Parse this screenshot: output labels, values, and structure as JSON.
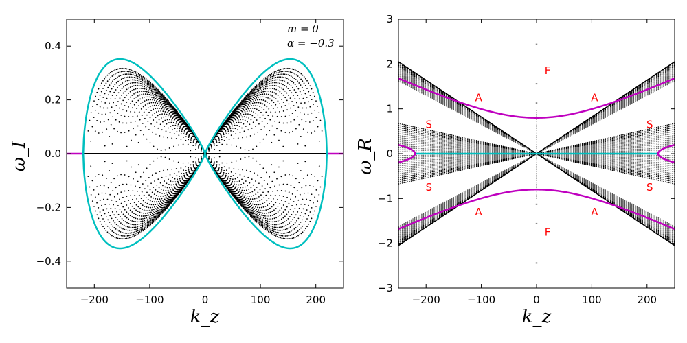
{
  "chart_data": [
    {
      "type": "scatter",
      "panel": "left",
      "xlabel": "k_z",
      "ylabel": "ω_I",
      "xlim": [
        -250,
        250
      ],
      "ylim": [
        -0.5,
        0.5
      ],
      "xticks": [
        -200,
        -100,
        0,
        100,
        200
      ],
      "xtick_labels": [
        "−200",
        "−100",
        "0",
        "100",
        "200"
      ],
      "yticks": [
        -0.4,
        -0.2,
        0.0,
        0.2,
        0.4
      ],
      "ytick_labels": [
        "−0.4",
        "−0.2",
        "0.0",
        "0.2",
        "0.4"
      ],
      "annotations": [
        "m = 0",
        "α = −0.3"
      ],
      "envelope": {
        "color": "#00bfbf",
        "k_zero": 220,
        "k_peak": 130,
        "omega_peak": 0.352,
        "points_positive_k": [
          [
            0,
            0
          ],
          [
            30,
            0.16
          ],
          [
            60,
            0.27
          ],
          [
            100,
            0.34
          ],
          [
            130,
            0.352
          ],
          [
            170,
            0.32
          ],
          [
            200,
            0.22
          ],
          [
            215,
            0.1
          ],
          [
            220,
            0
          ]
        ]
      },
      "zero_line": {
        "color": "#000000",
        "x_range": [
          -220,
          220
        ]
      },
      "stable_line": {
        "color": "#bf00bf",
        "x_ranges": [
          [
            -250,
            -220
          ],
          [
            220,
            250
          ]
        ]
      },
      "dot_family": {
        "color": "#000000",
        "curve_count": 30
      }
    },
    {
      "type": "scatter",
      "panel": "right",
      "xlabel": "k_z",
      "ylabel": "ω_R",
      "xlim": [
        -250,
        250
      ],
      "ylim": [
        -3,
        3
      ],
      "xticks": [
        -200,
        -100,
        0,
        100,
        200
      ],
      "xtick_labels": [
        "−200",
        "−100",
        "0",
        "100",
        "200"
      ],
      "yticks": [
        -3,
        -2,
        -1,
        0,
        1,
        2,
        3
      ],
      "ytick_labels": [
        "−3",
        "−2",
        "−1",
        "0",
        "1",
        "2",
        "3"
      ],
      "alfven_branch": {
        "color": "#bf00bf",
        "formula": "omega = sqrt(0.8^2 + (0.00357 k)^2)",
        "points": [
          [
            0,
            0.8
          ],
          [
            100,
            1.07
          ],
          [
            200,
            1.5
          ],
          [
            250,
            1.71
          ]
        ]
      },
      "fast_dashes": {
        "color": "#888888",
        "omega": [
          2.44,
          1.56,
          1.13
        ]
      },
      "straight_lines": {
        "color": "#000000",
        "slopes": [
          0.0082,
          0.0065,
          0.0027
        ],
        "note": "outer black line |ω| = 0.0082|k|"
      },
      "unstable_growth_axis_line": {
        "color": "#00bfbf",
        "x_range": [
          -220,
          220
        ]
      },
      "slow_loops": {
        "color": "#bf00bf",
        "k_start": 220,
        "omega_max": 0.32
      },
      "region_labels": [
        {
          "text": "F",
          "k": 20,
          "omega": 1.85
        },
        {
          "text": "F",
          "k": 20,
          "omega": -1.75
        },
        {
          "text": "A",
          "k": -105,
          "omega": 1.25
        },
        {
          "text": "A",
          "k": 105,
          "omega": 1.25
        },
        {
          "text": "A",
          "k": -105,
          "omega": -1.3
        },
        {
          "text": "A",
          "k": 105,
          "omega": -1.3
        },
        {
          "text": "S",
          "k": -195,
          "omega": 0.65
        },
        {
          "text": "S",
          "k": 205,
          "omega": 0.65
        },
        {
          "text": "S",
          "k": -195,
          "omega": -0.75
        },
        {
          "text": "S",
          "k": 205,
          "omega": -0.75
        }
      ],
      "region_label_color": "#ff0000"
    }
  ]
}
